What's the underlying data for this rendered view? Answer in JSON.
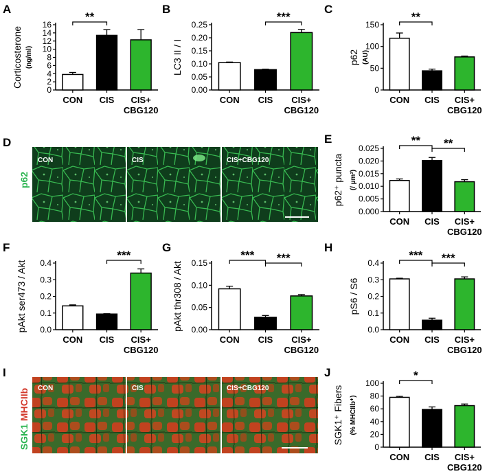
{
  "figure": {
    "colors": {
      "CON": "#ffffff",
      "CIS": "#000000",
      "CIS+CBG120": "#2db52d",
      "micro_green": "#28a53a",
      "micro_red": "#cc3322"
    }
  },
  "chart_data": [
    {
      "panel": "A",
      "type": "bar",
      "categories": [
        "CON",
        "CIS",
        "CIS+\nCBG120"
      ],
      "values": [
        3.8,
        13.4,
        12.3
      ],
      "errors": [
        0.5,
        1.4,
        2.5
      ],
      "ylabel": "Corticosterone",
      "yunit": "(ng/ml)",
      "ylim": [
        0,
        16
      ],
      "yticks": [
        0,
        2,
        4,
        6,
        8,
        10,
        12,
        14,
        16
      ],
      "significance": [
        {
          "from": 0,
          "to": 1,
          "label": "**"
        }
      ]
    },
    {
      "panel": "B",
      "type": "bar",
      "categories": [
        "CON",
        "CIS",
        "CIS+\nCBG120"
      ],
      "values": [
        0.105,
        0.078,
        0.22
      ],
      "errors": [
        0.002,
        0.002,
        0.012
      ],
      "ylabel": "LC3 II / I",
      "yunit": "",
      "ylim": [
        0,
        0.25
      ],
      "yticks": [
        0.0,
        0.05,
        0.1,
        0.15,
        0.2,
        0.25
      ],
      "significance": [
        {
          "from": 1,
          "to": 2,
          "label": "***"
        }
      ]
    },
    {
      "panel": "C",
      "type": "bar",
      "categories": [
        "CON",
        "CIS",
        "CIS+\nCBG120"
      ],
      "values": [
        119,
        44,
        76
      ],
      "errors": [
        12,
        4,
        2
      ],
      "ylabel": "p62",
      "yunit": "(AU)",
      "ylim": [
        0,
        150
      ],
      "yticks": [
        0,
        50,
        100,
        150
      ],
      "significance": [
        {
          "from": 0,
          "to": 1,
          "label": "**"
        }
      ]
    },
    {
      "panel": "E",
      "type": "bar",
      "categories": [
        "CON",
        "CIS",
        "CIS+\nCBG120"
      ],
      "values": [
        0.0123,
        0.0202,
        0.0118
      ],
      "errors": [
        0.0006,
        0.0012,
        0.0008
      ],
      "ylabel": "p62⁺ puncta",
      "yunit": "(/ µm²)",
      "ylim": [
        0,
        0.025
      ],
      "yticks": [
        0.0,
        0.005,
        0.01,
        0.015,
        0.02,
        0.025
      ],
      "significance": [
        {
          "from": 0,
          "to": 1,
          "label": "**"
        },
        {
          "from": 1,
          "to": 2,
          "label": "**"
        }
      ]
    },
    {
      "panel": "F",
      "type": "bar",
      "categories": [
        "CON",
        "CIS",
        "CIS+\nCBG120"
      ],
      "values": [
        0.143,
        0.094,
        0.34
      ],
      "errors": [
        0.006,
        0.002,
        0.025
      ],
      "ylabel": "pAkt ser473 / Akt",
      "yunit": "",
      "ylim": [
        0,
        0.4
      ],
      "yticks": [
        0.0,
        0.1,
        0.2,
        0.3,
        0.4
      ],
      "significance": [
        {
          "from": 1,
          "to": 2,
          "label": "***"
        }
      ]
    },
    {
      "panel": "G",
      "type": "bar",
      "categories": [
        "CON",
        "CIS",
        "CIS+\nCBG120"
      ],
      "values": [
        0.092,
        0.028,
        0.076
      ],
      "errors": [
        0.006,
        0.004,
        0.003
      ],
      "ylabel": "pAkt thr308 / Akt",
      "yunit": "",
      "ylim": [
        0,
        0.15
      ],
      "yticks": [
        0.0,
        0.05,
        0.1,
        0.15
      ],
      "significance": [
        {
          "from": 0,
          "to": 1,
          "label": "***"
        },
        {
          "from": 1,
          "to": 2,
          "label": "***"
        }
      ]
    },
    {
      "panel": "H",
      "type": "bar",
      "categories": [
        "CON",
        "CIS",
        "CIS+\nCBG120"
      ],
      "values": [
        0.305,
        0.057,
        0.305
      ],
      "errors": [
        0.004,
        0.012,
        0.012
      ],
      "ylabel": "pS6 / S6",
      "yunit": "",
      "ylim": [
        0,
        0.4
      ],
      "yticks": [
        0.0,
        0.1,
        0.2,
        0.3,
        0.4
      ],
      "significance": [
        {
          "from": 0,
          "to": 1,
          "label": "***"
        },
        {
          "from": 1,
          "to": 2,
          "label": "***"
        }
      ]
    },
    {
      "panel": "J",
      "type": "bar",
      "categories": [
        "CON",
        "CIS",
        "CIS+\nCBG120"
      ],
      "values": [
        78,
        59,
        65
      ],
      "errors": [
        1.5,
        4,
        2.5
      ],
      "ylabel": "SGK1⁺ Fibers",
      "yunit": "(% MHCIIb⁺)",
      "ylim": [
        0,
        100
      ],
      "yticks": [
        0,
        20,
        40,
        60,
        80,
        100
      ],
      "significance": [
        {
          "from": 0,
          "to": 1,
          "label": "*"
        }
      ]
    }
  ],
  "micrographs": [
    {
      "panel": "D",
      "stain_label": "p62",
      "image_labels": [
        "CON",
        "CIS",
        "CIS+CBG120"
      ]
    },
    {
      "panel": "I",
      "stain_label_green": "SGK1",
      "stain_label_red": "MHCIIb",
      "image_labels": [
        "CON",
        "CIS",
        "CIS+CBG120"
      ]
    }
  ]
}
